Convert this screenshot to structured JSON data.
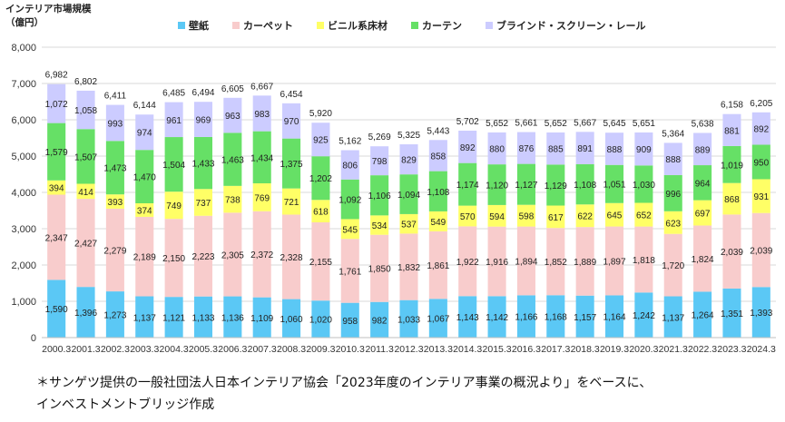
{
  "y_unit_line1": "インテリア市場規模",
  "y_unit_line2": "（億円）",
  "footnote_line1": "＊サンゲツ提供の一般社団法人日本インテリア協会「2023年度のインテリア事業の概況より」をベースに、",
  "footnote_line2": "インベストメントブリッジ作成",
  "chart_data": {
    "type": "bar",
    "stacked": true,
    "categories": [
      "2000.3",
      "2001.3",
      "2002.3",
      "2003.3",
      "2004.3",
      "2005.3",
      "2006.3",
      "2007.3",
      "2008.3",
      "2009.3",
      "2010.3",
      "2011.3",
      "2012.3",
      "2013.3",
      "2014.3",
      "2015.3",
      "2016.3",
      "2017.3",
      "2018.3",
      "2019.3",
      "2020.3",
      "2021.3",
      "2022.3",
      "2023.3",
      "2024.3"
    ],
    "series": [
      {
        "name": "壁紙",
        "color": "#5bc8f5",
        "values": [
          1590,
          1396,
          1273,
          1137,
          1121,
          1133,
          1136,
          1109,
          1060,
          1020,
          958,
          982,
          1033,
          1067,
          1143,
          1142,
          1166,
          1168,
          1157,
          1164,
          1242,
          1137,
          1264,
          1351,
          1393
        ]
      },
      {
        "name": "カーペット",
        "color": "#f8cccc",
        "values": [
          2347,
          2427,
          2279,
          2189,
          2150,
          2223,
          2305,
          2372,
          2328,
          2155,
          1761,
          1850,
          1832,
          1861,
          1922,
          1916,
          1894,
          1852,
          1889,
          1897,
          1818,
          1720,
          1824,
          2039,
          2039
        ]
      },
      {
        "name": "ビニル系床材",
        "color": "#ffff66",
        "values": [
          394,
          414,
          393,
          374,
          749,
          737,
          738,
          769,
          721,
          618,
          545,
          534,
          537,
          549,
          570,
          594,
          598,
          617,
          622,
          645,
          652,
          623,
          697,
          868,
          931
        ]
      },
      {
        "name": "カーテン",
        "color": "#66e066",
        "values": [
          1579,
          1507,
          1473,
          1470,
          1504,
          1433,
          1463,
          1434,
          1375,
          1202,
          1092,
          1106,
          1094,
          1108,
          1174,
          1120,
          1127,
          1129,
          1108,
          1051,
          1030,
          996,
          964,
          1019,
          950
        ]
      },
      {
        "name": "ブラインド・スクリーン・レール",
        "color": "#ccccff",
        "values": [
          1072,
          1058,
          993,
          974,
          961,
          969,
          963,
          983,
          970,
          925,
          806,
          798,
          829,
          858,
          892,
          880,
          876,
          885,
          891,
          888,
          909,
          888,
          889,
          881,
          892
        ]
      }
    ],
    "totals": [
      6982,
      6802,
      6411,
      6144,
      6485,
      6494,
      6605,
      6667,
      6454,
      5920,
      5162,
      5269,
      5325,
      5443,
      5702,
      5652,
      5661,
      5652,
      5667,
      5645,
      5651,
      5364,
      5638,
      6158,
      6205
    ],
    "y_ticks": [
      "0",
      "1,000",
      "2,000",
      "3,000",
      "4,000",
      "5,000",
      "6,000",
      "7,000",
      "8,000"
    ],
    "ylim": [
      0,
      8000
    ],
    "grid": true,
    "legend_position": "top"
  }
}
